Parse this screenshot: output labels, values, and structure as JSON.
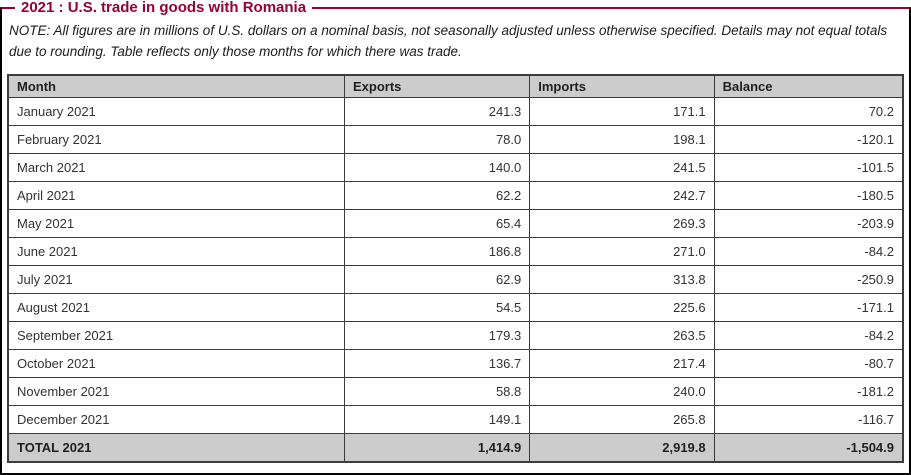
{
  "title": "2021 : U.S. trade in goods with Romania",
  "note": "NOTE: All figures are in millions of U.S. dollars on a nominal basis, not seasonally adjusted unless otherwise specified. Details may not equal totals due to rounding. Table reflects only those months for which there was trade.",
  "colors": {
    "accent": "#990033",
    "header_bg": "#cccccc",
    "border": "#3c3c3c"
  },
  "table": {
    "columns": [
      "Month",
      "Exports",
      "Imports",
      "Balance"
    ],
    "rows": [
      [
        "January 2021",
        "241.3",
        "171.1",
        "70.2"
      ],
      [
        "February 2021",
        "78.0",
        "198.1",
        "-120.1"
      ],
      [
        "March 2021",
        "140.0",
        "241.5",
        "-101.5"
      ],
      [
        "April 2021",
        "62.2",
        "242.7",
        "-180.5"
      ],
      [
        "May 2021",
        "65.4",
        "269.3",
        "-203.9"
      ],
      [
        "June 2021",
        "186.8",
        "271.0",
        "-84.2"
      ],
      [
        "July 2021",
        "62.9",
        "313.8",
        "-250.9"
      ],
      [
        "August 2021",
        "54.5",
        "225.6",
        "-171.1"
      ],
      [
        "September 2021",
        "179.3",
        "263.5",
        "-84.2"
      ],
      [
        "October 2021",
        "136.7",
        "217.4",
        "-80.7"
      ],
      [
        "November 2021",
        "58.8",
        "240.0",
        "-181.2"
      ],
      [
        "December 2021",
        "149.1",
        "265.8",
        "-116.7"
      ]
    ],
    "total": [
      "TOTAL 2021",
      "1,414.9",
      "2,919.8",
      "-1,504.9"
    ]
  }
}
